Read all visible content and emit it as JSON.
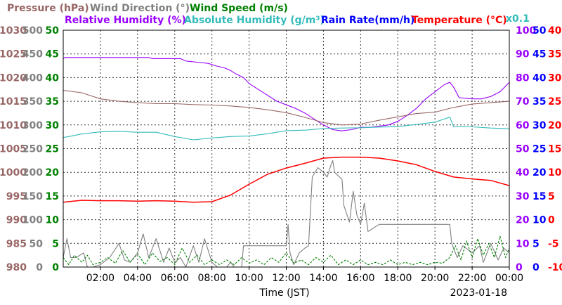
{
  "chart_data": {
    "type": "line",
    "title_row1": [
      {
        "key": "pressure",
        "text": "Pressure (hPa)",
        "color": "#996666"
      },
      {
        "key": "wind_dir",
        "text": "Wind Direction (°)",
        "color": "#808080"
      },
      {
        "key": "wind_speed",
        "text": "Wind Speed (m/s)",
        "color": "#008000"
      }
    ],
    "title_row2": [
      {
        "key": "rh",
        "text": "Relative Humidity (%)",
        "color": "#9900ff"
      },
      {
        "key": "ah",
        "text": "Absolute Humidity (g/m³)",
        "color": "#33bbbb"
      },
      {
        "key": "rain",
        "text": "Rain Rate(mm/h)",
        "color": "#0000ff"
      },
      {
        "key": "temp",
        "text": "Temperature (°C)",
        "color": "#ff0000"
      }
    ],
    "multiplier_note": {
      "text": "x0.1",
      "color": "#33bbbb"
    },
    "xlabel": "Time (JST)",
    "date": "2023-01-18",
    "x_range_hours": [
      0,
      24
    ],
    "x_ticks": [
      {
        "h": 2,
        "label": "02:00"
      },
      {
        "h": 4,
        "label": "04:00"
      },
      {
        "h": 6,
        "label": "06:00"
      },
      {
        "h": 8,
        "label": "08:00"
      },
      {
        "h": 10,
        "label": "10:00"
      },
      {
        "h": 12,
        "label": "12:00"
      },
      {
        "h": 14,
        "label": "14:00"
      },
      {
        "h": 16,
        "label": "16:00"
      },
      {
        "h": 18,
        "label": "18:00"
      },
      {
        "h": 20,
        "label": "20:00"
      },
      {
        "h": 22,
        "label": "22:00"
      },
      {
        "h": 24,
        "label": "00:00"
      }
    ],
    "axes": [
      {
        "key": "pressure",
        "side": "left",
        "color": "#996666",
        "min": 980,
        "max": 1030,
        "ticks": [
          980,
          985,
          990,
          995,
          1000,
          1005,
          1010,
          1015,
          1020,
          1025,
          1030
        ]
      },
      {
        "key": "wind_dir",
        "side": "left",
        "color": "#808080",
        "min": 0,
        "max": 500,
        "ticks": [
          0,
          50,
          100,
          150,
          200,
          250,
          300,
          350,
          400,
          450,
          500
        ]
      },
      {
        "key": "wind_speed",
        "side": "left",
        "color": "#008000",
        "min": 0,
        "max": 50,
        "ticks": [
          0,
          5,
          10,
          15,
          20,
          25,
          30,
          35,
          40,
          45,
          50
        ]
      },
      {
        "key": "rh",
        "side": "right",
        "color": "#9900ff",
        "min": 0,
        "max": 100,
        "ticks": [
          0,
          10,
          20,
          30,
          40,
          50,
          60,
          70,
          80,
          90,
          100
        ]
      },
      {
        "key": "rain",
        "side": "right",
        "color": "#0000ff",
        "min": 0,
        "max": 50,
        "ticks": [
          0,
          5,
          10,
          15,
          20,
          25,
          30,
          35,
          40,
          45,
          50
        ]
      },
      {
        "key": "temp",
        "side": "right",
        "color": "#ff0000",
        "min": -10,
        "max": 40,
        "ticks": [
          -10,
          -5,
          0,
          5,
          10,
          15,
          20,
          25,
          30,
          35,
          40
        ]
      }
    ],
    "grid": true,
    "series": [
      {
        "name": "Relative Humidity (%)",
        "axis": "rh",
        "color": "#9900ff",
        "points": [
          [
            0,
            88
          ],
          [
            0.1,
            88.5
          ],
          [
            1,
            88.5
          ],
          [
            2,
            88.5
          ],
          [
            3,
            88.5
          ],
          [
            4,
            88.5
          ],
          [
            4.6,
            88.5
          ],
          [
            4.8,
            88
          ],
          [
            5.5,
            88
          ],
          [
            6.3,
            88
          ],
          [
            6.6,
            87
          ],
          [
            7.2,
            86.5
          ],
          [
            7.8,
            86
          ],
          [
            8.2,
            85
          ],
          [
            8.7,
            84
          ],
          [
            9,
            83
          ],
          [
            9.3,
            81.5
          ],
          [
            9.7,
            80
          ],
          [
            10,
            77.5
          ],
          [
            10.5,
            75
          ],
          [
            11,
            72.5
          ],
          [
            11.5,
            70
          ],
          [
            12,
            68.5
          ],
          [
            12.5,
            67
          ],
          [
            13,
            65
          ],
          [
            13.5,
            62.5
          ],
          [
            14,
            60
          ],
          [
            14.5,
            58
          ],
          [
            15,
            57.5
          ],
          [
            15.5,
            58
          ],
          [
            16,
            59
          ],
          [
            16.5,
            59
          ],
          [
            17,
            59.5
          ],
          [
            17.5,
            60
          ],
          [
            18,
            61.5
          ],
          [
            18.5,
            64
          ],
          [
            19,
            67
          ],
          [
            19.5,
            71
          ],
          [
            20,
            74
          ],
          [
            20.5,
            77
          ],
          [
            20.8,
            78
          ],
          [
            21,
            76
          ],
          [
            21.3,
            71.5
          ],
          [
            22,
            71
          ],
          [
            22.5,
            71
          ],
          [
            23,
            72
          ],
          [
            23.5,
            74
          ],
          [
            24,
            78
          ]
        ]
      },
      {
        "name": "Pressure (hPa)",
        "axis": "pressure",
        "color": "#996666",
        "points": [
          [
            0,
            1017.3
          ],
          [
            1,
            1016.8
          ],
          [
            2,
            1015.5
          ],
          [
            3,
            1015
          ],
          [
            4,
            1014.7
          ],
          [
            5,
            1014.5
          ],
          [
            6,
            1014.5
          ],
          [
            7,
            1014.3
          ],
          [
            8,
            1014.2
          ],
          [
            9,
            1014
          ],
          [
            10,
            1013.7
          ],
          [
            11,
            1013.2
          ],
          [
            12,
            1012.6
          ],
          [
            13,
            1011.6
          ],
          [
            14,
            1010.5
          ],
          [
            15,
            1010
          ],
          [
            16,
            1010.2
          ],
          [
            17,
            1011
          ],
          [
            18,
            1011.7
          ],
          [
            19,
            1012.4
          ],
          [
            20,
            1012.7
          ],
          [
            21,
            1013.7
          ],
          [
            22,
            1014.4
          ],
          [
            23,
            1014.7
          ],
          [
            24,
            1015
          ]
        ]
      },
      {
        "name": "Absolute Humidity (g/m³)",
        "axis": "ah",
        "color": "#33bbbb",
        "points": [
          [
            0,
            54.7
          ],
          [
            0.5,
            55.4
          ],
          [
            1,
            56.2
          ],
          [
            2,
            57.1
          ],
          [
            3,
            57.3
          ],
          [
            4,
            56.9
          ],
          [
            5,
            56.9
          ],
          [
            6,
            55.1
          ],
          [
            7,
            53.7
          ],
          [
            8,
            54.5
          ],
          [
            9,
            55.1
          ],
          [
            10,
            55.3
          ],
          [
            11,
            56.3
          ],
          [
            12,
            57.6
          ],
          [
            13,
            57.8
          ],
          [
            14,
            58.5
          ],
          [
            15,
            58.7
          ],
          [
            16,
            58.8
          ],
          [
            17,
            59.1
          ],
          [
            18,
            59.3
          ],
          [
            19,
            60.2
          ],
          [
            20,
            61.2
          ],
          [
            20.8,
            63.3
          ],
          [
            21,
            59.3
          ],
          [
            22,
            59.2
          ],
          [
            23,
            58.7
          ],
          [
            24,
            58.4
          ]
        ]
      },
      {
        "name": "Temperature (°C)",
        "axis": "temp",
        "color": "#ff0000",
        "points": [
          [
            0,
            3.7
          ],
          [
            1,
            4.1
          ],
          [
            2,
            4
          ],
          [
            3,
            4
          ],
          [
            4,
            3.9
          ],
          [
            5,
            4
          ],
          [
            6,
            3.9
          ],
          [
            7,
            3.7
          ],
          [
            8,
            3.8
          ],
          [
            9,
            5.2
          ],
          [
            10,
            7.5
          ],
          [
            11,
            9.6
          ],
          [
            12,
            10.9
          ],
          [
            13,
            11.9
          ],
          [
            14,
            13
          ],
          [
            15,
            13.2
          ],
          [
            16,
            13.2
          ],
          [
            17,
            13
          ],
          [
            18,
            12.4
          ],
          [
            19,
            11.6
          ],
          [
            20,
            10.2
          ],
          [
            21,
            9
          ],
          [
            22,
            8.6
          ],
          [
            23,
            8.3
          ],
          [
            24,
            7.2
          ]
        ]
      },
      {
        "name": "Wind Direction (°)",
        "axis": "wind_dir",
        "color": "#808080",
        "points": [
          [
            0,
            20
          ],
          [
            0.2,
            60
          ],
          [
            0.4,
            20
          ],
          [
            0.7,
            20
          ],
          [
            1.1,
            30
          ],
          [
            1.3,
            0
          ],
          [
            1.6,
            0
          ],
          [
            2,
            5
          ],
          [
            2.5,
            20
          ],
          [
            3,
            50
          ],
          [
            3.3,
            15
          ],
          [
            3.6,
            10
          ],
          [
            4,
            30
          ],
          [
            4.3,
            70
          ],
          [
            4.6,
            20
          ],
          [
            5,
            60
          ],
          [
            5.4,
            10
          ],
          [
            5.7,
            40
          ],
          [
            6,
            10
          ],
          [
            6.3,
            20
          ],
          [
            6.6,
            0
          ],
          [
            7,
            45
          ],
          [
            7.3,
            10
          ],
          [
            7.6,
            60
          ],
          [
            8,
            10
          ],
          [
            8.3,
            0
          ],
          [
            8.8,
            0
          ],
          [
            9,
            10
          ],
          [
            9.2,
            0
          ],
          [
            9.6,
            0
          ],
          [
            9.7,
            45
          ],
          [
            10.5,
            45
          ],
          [
            11.5,
            45
          ],
          [
            12,
            45
          ],
          [
            12.1,
            90
          ],
          [
            12.2,
            30
          ],
          [
            12.4,
            5
          ],
          [
            12.7,
            30
          ],
          [
            13,
            40
          ],
          [
            13.2,
            45
          ],
          [
            13.4,
            190
          ],
          [
            13.7,
            210
          ],
          [
            14,
            200
          ],
          [
            14.2,
            190
          ],
          [
            14.4,
            215
          ],
          [
            14.5,
            225
          ],
          [
            14.6,
            200
          ],
          [
            15,
            185
          ],
          [
            15.1,
            130
          ],
          [
            15.4,
            95
          ],
          [
            15.6,
            160
          ],
          [
            15.8,
            110
          ],
          [
            16,
            90
          ],
          [
            16.2,
            135
          ],
          [
            16.4,
            75
          ],
          [
            17,
            90
          ],
          [
            18,
            90
          ],
          [
            19,
            90
          ],
          [
            20,
            90
          ],
          [
            20.8,
            90
          ],
          [
            20.9,
            50
          ],
          [
            21.2,
            20
          ],
          [
            21.5,
            45
          ],
          [
            22,
            30
          ],
          [
            22.4,
            45
          ],
          [
            22.6,
            10
          ],
          [
            23,
            50
          ],
          [
            23.4,
            15
          ],
          [
            23.7,
            40
          ],
          [
            24,
            30
          ]
        ]
      },
      {
        "name": "Wind Speed (m/s)",
        "axis": "wind_speed",
        "color": "#008000",
        "dash": "3,2",
        "points": [
          [
            0,
            2
          ],
          [
            0.3,
            0.5
          ],
          [
            0.6,
            2.5
          ],
          [
            1,
            1
          ],
          [
            1.3,
            2.5
          ],
          [
            1.6,
            0.5
          ],
          [
            2,
            1
          ],
          [
            2.4,
            2
          ],
          [
            2.8,
            0.8
          ],
          [
            3.2,
            3.5
          ],
          [
            3.6,
            1
          ],
          [
            4,
            2.8
          ],
          [
            4.4,
            0.5
          ],
          [
            4.8,
            3
          ],
          [
            5.2,
            1.2
          ],
          [
            5.6,
            2
          ],
          [
            6,
            0.5
          ],
          [
            6.4,
            4
          ],
          [
            6.8,
            1
          ],
          [
            7.2,
            2.5
          ],
          [
            7.6,
            0.5
          ],
          [
            8,
            1.5
          ],
          [
            8.4,
            0.5
          ],
          [
            8.8,
            1.5
          ],
          [
            9.2,
            0.5
          ],
          [
            9.6,
            2
          ],
          [
            10,
            0.8
          ],
          [
            10.4,
            1.5
          ],
          [
            10.8,
            0.5
          ],
          [
            11.2,
            2
          ],
          [
            11.6,
            1
          ],
          [
            12,
            3
          ],
          [
            12.4,
            0.8
          ],
          [
            12.8,
            1.5
          ],
          [
            13.2,
            0.5
          ],
          [
            13.6,
            2
          ],
          [
            14,
            1
          ],
          [
            14.4,
            2.5
          ],
          [
            14.8,
            0.5
          ],
          [
            15.2,
            1.5
          ],
          [
            15.6,
            0.5
          ],
          [
            16,
            1.5
          ],
          [
            16.4,
            0.5
          ],
          [
            16.8,
            1
          ],
          [
            17.2,
            0.5
          ],
          [
            17.6,
            1.5
          ],
          [
            18,
            0.5
          ],
          [
            18.4,
            1
          ],
          [
            18.8,
            0.5
          ],
          [
            19.2,
            1
          ],
          [
            19.6,
            0.5
          ],
          [
            20,
            1
          ],
          [
            20.4,
            0.8
          ],
          [
            20.8,
            2
          ],
          [
            21.1,
            4.5
          ],
          [
            21.4,
            1.5
          ],
          [
            21.7,
            5.5
          ],
          [
            22,
            2
          ],
          [
            22.3,
            6
          ],
          [
            22.6,
            2.5
          ],
          [
            22.9,
            5
          ],
          [
            23.2,
            2
          ],
          [
            23.5,
            6.5
          ],
          [
            23.8,
            2
          ],
          [
            24,
            4
          ]
        ]
      }
    ]
  }
}
